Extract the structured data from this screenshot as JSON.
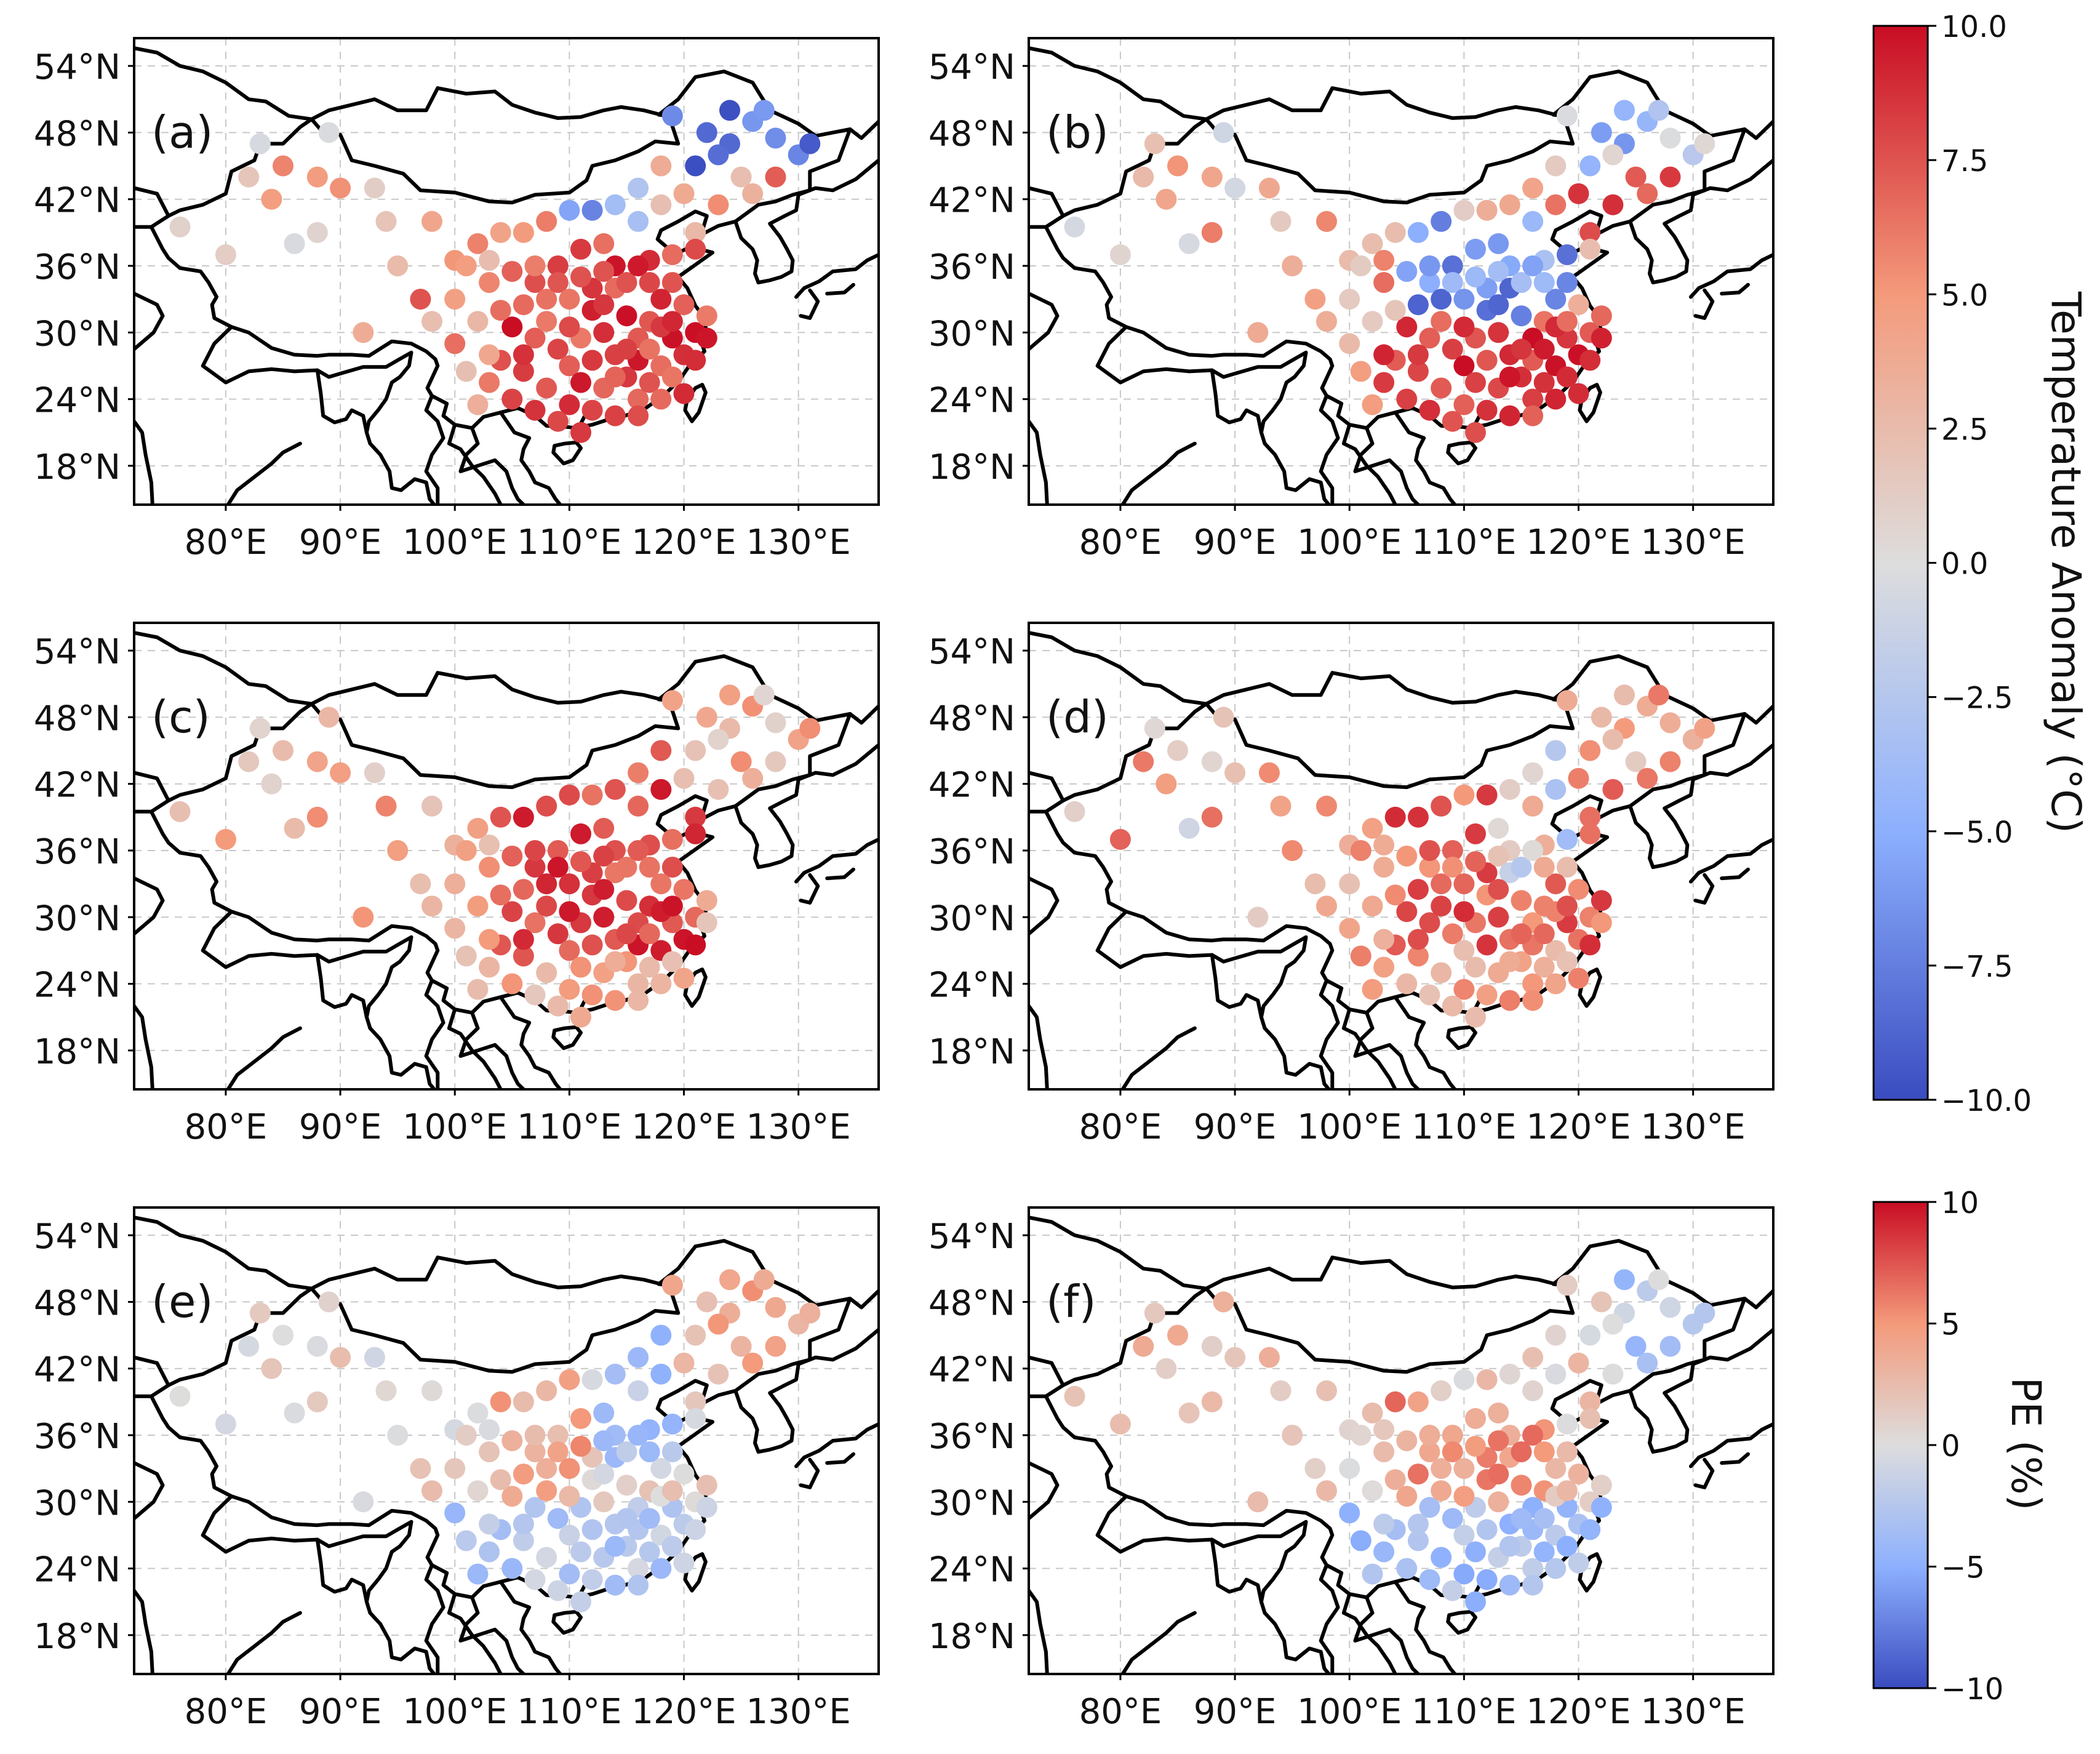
{
  "panels": [
    {
      "label": "(a)",
      "colorbar": "temp",
      "seed": 11,
      "pattern": "a"
    },
    {
      "label": "(b)",
      "colorbar": "temp",
      "seed": 23,
      "pattern": "b"
    },
    {
      "label": "(c)",
      "colorbar": "temp",
      "seed": 37,
      "pattern": "c"
    },
    {
      "label": "(d)",
      "colorbar": "temp",
      "seed": 41,
      "pattern": "d"
    },
    {
      "label": "(e)",
      "colorbar": "pe",
      "seed": 53,
      "pattern": "e"
    },
    {
      "label": "(f)",
      "colorbar": "pe",
      "seed": 67,
      "pattern": "f"
    }
  ],
  "map_axes": {
    "lat_ticks": [
      "54°N",
      "48°N",
      "42°N",
      "36°N",
      "30°N",
      "24°N",
      "18°N"
    ],
    "lat_values": [
      54,
      48,
      42,
      36,
      30,
      24,
      18
    ],
    "lon_ticks": [
      "80°E",
      "90°E",
      "100°E",
      "110°E",
      "120°E",
      "130°E"
    ],
    "lon_values": [
      80,
      90,
      100,
      110,
      120,
      130
    ],
    "lon_range": [
      72,
      137
    ],
    "lat_range": [
      14.5,
      56.5
    ]
  },
  "colorbars": {
    "temp": {
      "label": "Temperature Anomaly (°C)",
      "range": [
        -10,
        10
      ],
      "ticks": [
        "10.0",
        "7.5",
        "5.0",
        "2.5",
        "0.0",
        "−2.5",
        "−5.0",
        "−7.5",
        "−10.0"
      ],
      "tick_values": [
        10,
        7.5,
        5,
        2.5,
        0,
        -2.5,
        -5,
        -7.5,
        -10
      ]
    },
    "pe": {
      "label": "PE (%)",
      "range": [
        -10,
        10
      ],
      "ticks": [
        "10",
        "5",
        "0",
        "−5",
        "−10"
      ],
      "tick_values": [
        10,
        5,
        0,
        -5,
        -10
      ]
    }
  },
  "colors": {
    "cold": "#3a4cc0",
    "neutral": "#dddddd",
    "warm": "#c90d24",
    "boundary": "#000000",
    "grid": "#c8c8c8"
  },
  "stations": [
    [
      76,
      39.5
    ],
    [
      80,
      37
    ],
    [
      82,
      44
    ],
    [
      83,
      47
    ],
    [
      84,
      42
    ],
    [
      85,
      45
    ],
    [
      86,
      38
    ],
    [
      88,
      44
    ],
    [
      89,
      48
    ],
    [
      88,
      39
    ],
    [
      90,
      43
    ],
    [
      93,
      43
    ],
    [
      94,
      40
    ],
    [
      98,
      40
    ],
    [
      100,
      36.5
    ],
    [
      102,
      38
    ],
    [
      104,
      39
    ],
    [
      106,
      39
    ],
    [
      108,
      40
    ],
    [
      110,
      41
    ],
    [
      112,
      41
    ],
    [
      114,
      41.5
    ],
    [
      116,
      40
    ],
    [
      118,
      41.5
    ],
    [
      120,
      42.5
    ],
    [
      121,
      39
    ],
    [
      123,
      41.5
    ],
    [
      125,
      44
    ],
    [
      124,
      47
    ],
    [
      126,
      49
    ],
    [
      128,
      47.5
    ],
    [
      130,
      46
    ],
    [
      127,
      50
    ],
    [
      124,
      50
    ],
    [
      122,
      48
    ],
    [
      119,
      49.5
    ],
    [
      121,
      45
    ],
    [
      126,
      42.5
    ],
    [
      128,
      44
    ],
    [
      131,
      47
    ],
    [
      118,
      45
    ],
    [
      116,
      43
    ],
    [
      113,
      38
    ],
    [
      114,
      36
    ],
    [
      117,
      36.5
    ],
    [
      119,
      37
    ],
    [
      121,
      37.5
    ],
    [
      111,
      37.5
    ],
    [
      109,
      36
    ],
    [
      107,
      34.5
    ],
    [
      105,
      35.5
    ],
    [
      103,
      34.5
    ],
    [
      101,
      36
    ],
    [
      98,
      31
    ],
    [
      100,
      29
    ],
    [
      102,
      31
    ],
    [
      101,
      26.5
    ],
    [
      103,
      25.5
    ],
    [
      104,
      27.5
    ],
    [
      106,
      26.5
    ],
    [
      107,
      29.5
    ],
    [
      105,
      30.5
    ],
    [
      104,
      32
    ],
    [
      106,
      32.5
    ],
    [
      108,
      31
    ],
    [
      109,
      28.5
    ],
    [
      110,
      27
    ],
    [
      108,
      25
    ],
    [
      110,
      23.5
    ],
    [
      112,
      23
    ],
    [
      113,
      25
    ],
    [
      114,
      22.5
    ],
    [
      116,
      24
    ],
    [
      115,
      26
    ],
    [
      117,
      25.5
    ],
    [
      118,
      27
    ],
    [
      119,
      26
    ],
    [
      120,
      28
    ],
    [
      121,
      30
    ],
    [
      122,
      31.5
    ],
    [
      120,
      32.5
    ],
    [
      119,
      34.5
    ],
    [
      118,
      33
    ],
    [
      117,
      31
    ],
    [
      116,
      29.5
    ],
    [
      115,
      31.5
    ],
    [
      114,
      28
    ],
    [
      113,
      30
    ],
    [
      112,
      32
    ],
    [
      111,
      29.5
    ],
    [
      112,
      34
    ],
    [
      113,
      35.5
    ],
    [
      114,
      34
    ],
    [
      115,
      34.5
    ],
    [
      116,
      36
    ],
    [
      117,
      34.5
    ],
    [
      119,
      29.5
    ],
    [
      118,
      30.5
    ],
    [
      116,
      27.5
    ],
    [
      114,
      26
    ],
    [
      112,
      27.5
    ],
    [
      110,
      30.5
    ],
    [
      108,
      33
    ],
    [
      106,
      28
    ],
    [
      103,
      28
    ],
    [
      102,
      23.5
    ],
    [
      105,
      24
    ],
    [
      107,
      23
    ],
    [
      109,
      22
    ],
    [
      111,
      21
    ],
    [
      111,
      25.5
    ],
    [
      113,
      32.5
    ],
    [
      115,
      28.5
    ],
    [
      117,
      28.5
    ],
    [
      119,
      31
    ],
    [
      121,
      27.5
    ],
    [
      120,
      24.5
    ],
    [
      118,
      24
    ],
    [
      116,
      22.5
    ],
    [
      109,
      34.5
    ],
    [
      110,
      33
    ],
    [
      107,
      36
    ],
    [
      103,
      36.5
    ],
    [
      95,
      36
    ],
    [
      92,
      30
    ],
    [
      97,
      33
    ],
    [
      100,
      33
    ],
    [
      111,
      35
    ],
    [
      122,
      29.5
    ],
    [
      123,
      46
    ]
  ]
}
